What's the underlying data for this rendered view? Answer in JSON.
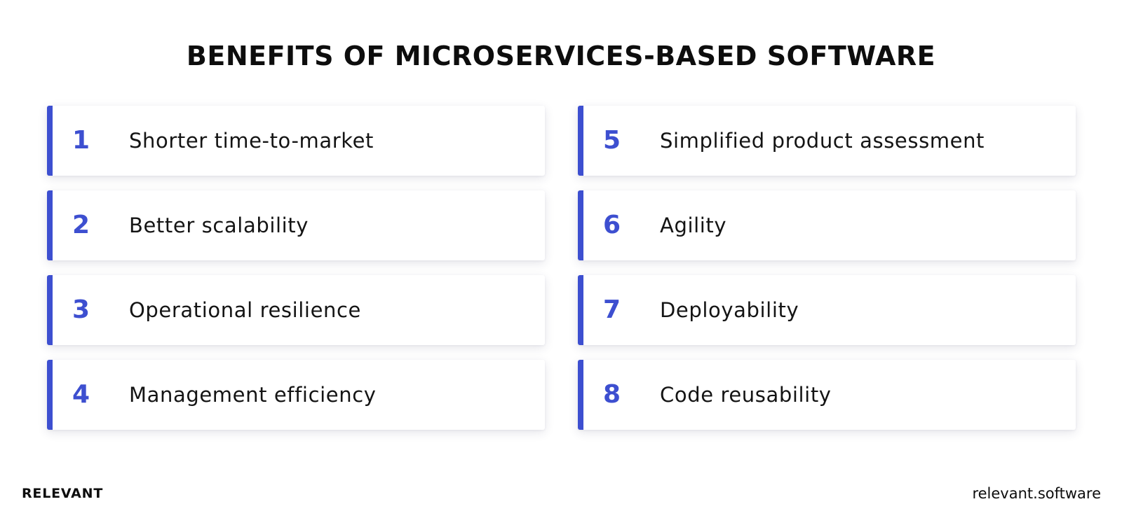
{
  "title": "BENEFITS OF MICROSERVICES-BASED SOFTWARE",
  "accent_color": "#3d4fd0",
  "items": [
    {
      "number": "1",
      "label": "Shorter time-to-market"
    },
    {
      "number": "5",
      "label": "Simplified product assessment"
    },
    {
      "number": "2",
      "label": "Better scalability"
    },
    {
      "number": "6",
      "label": "Agility"
    },
    {
      "number": "3",
      "label": "Operational resilience"
    },
    {
      "number": "7",
      "label": "Deployability"
    },
    {
      "number": "4",
      "label": "Management efficiency"
    },
    {
      "number": "8",
      "label": "Code reusability"
    }
  ],
  "footer": {
    "brand": "RELEVANT",
    "website": "relevant.software"
  }
}
